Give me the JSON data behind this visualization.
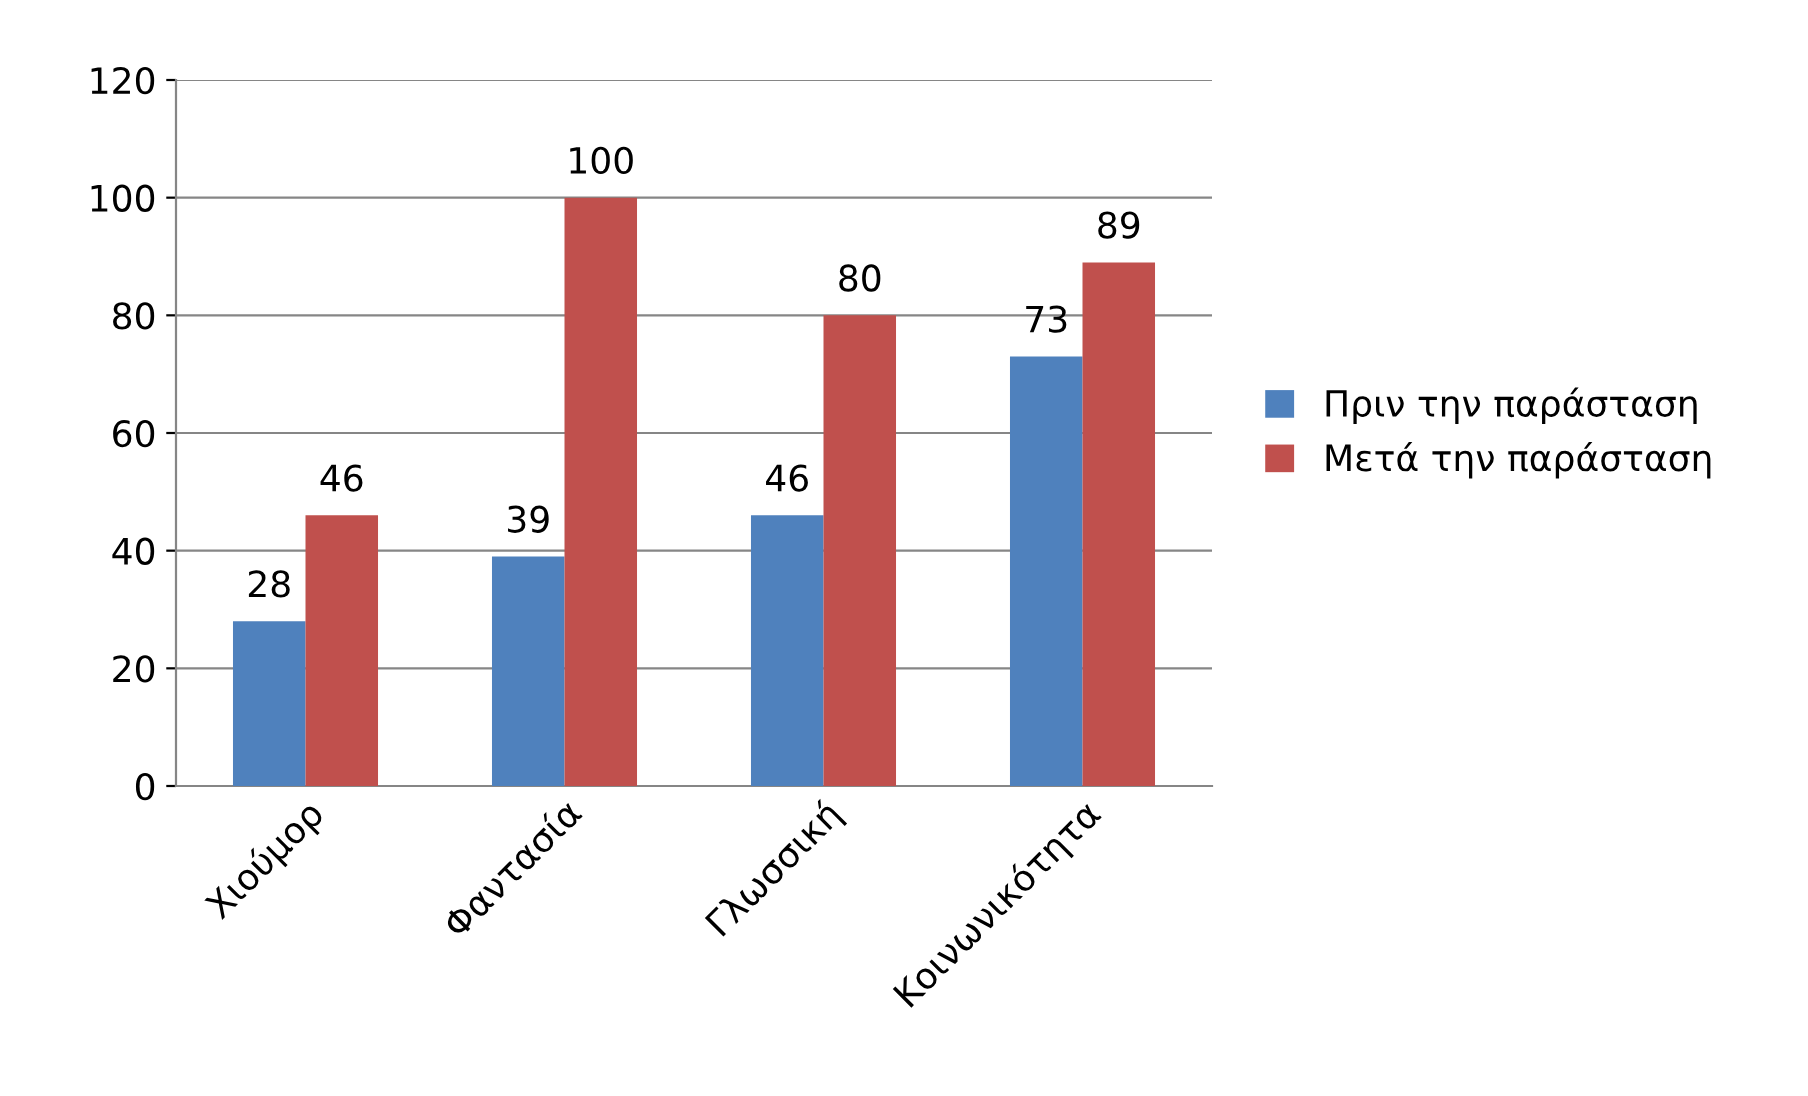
{
  "chart_data": {
    "type": "bar",
    "categories": [
      "Χιούμορ",
      "Φαντασία",
      "Γλωσσική",
      "Κοινωνικότητα"
    ],
    "series": [
      {
        "name": "Πριν την παράσταση",
        "color": "#4f81bd",
        "values": [
          28,
          39,
          46,
          73
        ]
      },
      {
        "name": "Μετά την παράσταση",
        "color": "#c0504d",
        "values": [
          46,
          100,
          80,
          89
        ]
      }
    ],
    "ylim": [
      0,
      120
    ],
    "yticks": [
      0,
      20,
      40,
      60,
      80,
      100,
      120
    ],
    "grid": "y",
    "legend": "right",
    "data_labels": true
  }
}
